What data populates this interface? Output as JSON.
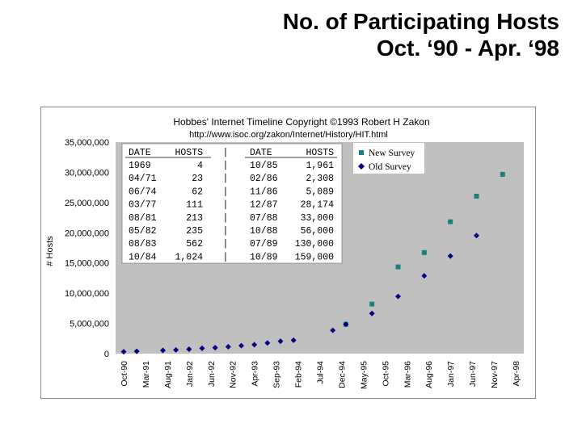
{
  "slide": {
    "title_line1": "No. of Participating Hosts",
    "title_line2": "Oct. ‘90 - Apr. ‘98"
  },
  "chart_data": {
    "type": "scatter",
    "title": "Hobbes' Internet Timeline Copyright ©1993 Robert H Zakon",
    "subtitle": "http://www.isoc.org/zakon/Internet/History/HIT.html",
    "xlabel": "",
    "ylabel": "# Hosts",
    "ylim": [
      0,
      35000000
    ],
    "yticks": [
      "35,000,000",
      "30,000,000",
      "25,000,000",
      "20,000,000",
      "15,000,000",
      "10,000,000",
      "5,000,000",
      "0"
    ],
    "ytick_values": [
      35000000,
      30000000,
      25000000,
      20000000,
      15000000,
      10000000,
      5000000,
      0
    ],
    "categories": [
      "Oct-90",
      "Mar-91",
      "Aug-91",
      "Jan-92",
      "Jun-92",
      "Nov-92",
      "Apr-93",
      "Sep-93",
      "Feb-94",
      "Jul-94",
      "Dec-94",
      "May-95",
      "Oct-95",
      "Mar-96",
      "Aug-96",
      "Jan-97",
      "Jun-97",
      "Nov-97",
      "Apr-98"
    ],
    "grid": false,
    "legend_position": "top-right",
    "plot_background": "#c0c0c0",
    "series": [
      {
        "name": "New Survey",
        "marker": "square",
        "color": "#1a8080",
        "points": [
          {
            "x": "Jan-95",
            "y": 4852000
          },
          {
            "x": "Jul-95",
            "y": 8200000
          },
          {
            "x": "Jan-96",
            "y": 14352000
          },
          {
            "x": "Jul-96",
            "y": 16729000
          },
          {
            "x": "Jan-97",
            "y": 21819000
          },
          {
            "x": "Jul-97",
            "y": 26053000
          },
          {
            "x": "Jan-98",
            "y": 29670000
          }
        ]
      },
      {
        "name": "Old Survey",
        "marker": "diamond",
        "color": "#000080",
        "points": [
          {
            "x": "Oct-90",
            "y": 313000
          },
          {
            "x": "Jan-91",
            "y": 376000
          },
          {
            "x": "Jul-91",
            "y": 535000
          },
          {
            "x": "Oct-91",
            "y": 617000
          },
          {
            "x": "Jan-92",
            "y": 727000
          },
          {
            "x": "Apr-92",
            "y": 890000
          },
          {
            "x": "Jul-92",
            "y": 992000
          },
          {
            "x": "Oct-92",
            "y": 1136000
          },
          {
            "x": "Jan-93",
            "y": 1313000
          },
          {
            "x": "Apr-93",
            "y": 1486000
          },
          {
            "x": "Jul-93",
            "y": 1776000
          },
          {
            "x": "Oct-93",
            "y": 2056000
          },
          {
            "x": "Jan-94",
            "y": 2217000
          },
          {
            "x": "Oct-94",
            "y": 3864000
          },
          {
            "x": "Jan-95",
            "y": 4852000
          },
          {
            "x": "Jul-95",
            "y": 6642000
          },
          {
            "x": "Jan-96",
            "y": 9472000
          },
          {
            "x": "Jul-96",
            "y": 12881000
          },
          {
            "x": "Jan-97",
            "y": 16146000
          },
          {
            "x": "Jul-97",
            "y": 19540000
          }
        ]
      }
    ],
    "table": {
      "headers": [
        "DATE",
        "HOSTS",
        "|",
        "DATE",
        "HOSTS"
      ],
      "rows": [
        [
          "1969",
          "4",
          "|",
          "10/85",
          "1,961"
        ],
        [
          "04/71",
          "23",
          "|",
          "02/86",
          "2,308"
        ],
        [
          "06/74",
          "62",
          "|",
          "11/86",
          "5,089"
        ],
        [
          "03/77",
          "111",
          "|",
          "12/87",
          "28,174"
        ],
        [
          "08/81",
          "213",
          "|",
          "07/88",
          "33,000"
        ],
        [
          "05/82",
          "235",
          "|",
          "10/88",
          "56,000"
        ],
        [
          "08/83",
          "562",
          "|",
          "07/89",
          "130,000"
        ],
        [
          "10/84",
          "1,024",
          "|",
          "10/89",
          "159,000"
        ]
      ]
    }
  }
}
